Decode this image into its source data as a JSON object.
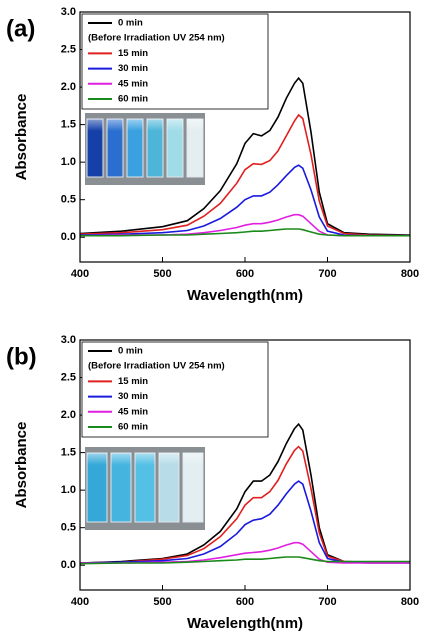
{
  "chart_data": [
    {
      "type": "line",
      "label": "(a)",
      "x_label": "Wavelength(nm)",
      "y_label": "Absorbance",
      "legend_note": "(Before Irradiation UV 254 nm)",
      "xlim": [
        400,
        800
      ],
      "xticks": [
        400,
        500,
        600,
        700,
        800
      ],
      "ylim": [
        -0.33,
        3
      ],
      "yticks": [
        {
          "value": 0,
          "label": "0.0"
        },
        0.5,
        {
          "value": 1,
          "label": "1.0"
        },
        1.5,
        {
          "value": 2,
          "label": "2.0"
        },
        2.5,
        {
          "value": 3,
          "label": "3.0"
        }
      ],
      "x": [
        400,
        450,
        500,
        530,
        550,
        570,
        590,
        600,
        610,
        620,
        630,
        640,
        650,
        660,
        665,
        670,
        680,
        690,
        700,
        720,
        750,
        800
      ],
      "series": [
        {
          "name": "0 min",
          "color": "#000000",
          "values": [
            0.05,
            0.08,
            0.14,
            0.22,
            0.38,
            0.62,
            0.98,
            1.25,
            1.38,
            1.35,
            1.42,
            1.6,
            1.85,
            2.05,
            2.12,
            2.05,
            1.4,
            0.6,
            0.18,
            0.06,
            0.04,
            0.03
          ]
        },
        {
          "name": "15 min",
          "color": "#e02020",
          "values": [
            0.04,
            0.06,
            0.1,
            0.16,
            0.28,
            0.45,
            0.72,
            0.9,
            0.98,
            0.97,
            1.02,
            1.15,
            1.35,
            1.55,
            1.63,
            1.58,
            1.1,
            0.48,
            0.15,
            0.05,
            0.03,
            0.02
          ]
        },
        {
          "name": "30 min",
          "color": "#1a1adf",
          "values": [
            0.03,
            0.04,
            0.06,
            0.09,
            0.15,
            0.25,
            0.4,
            0.5,
            0.55,
            0.55,
            0.6,
            0.7,
            0.82,
            0.93,
            0.96,
            0.92,
            0.63,
            0.27,
            0.08,
            0.03,
            0.02,
            0.02
          ]
        },
        {
          "name": "45 min",
          "color": "#e020e0",
          "values": [
            0.02,
            0.03,
            0.03,
            0.04,
            0.06,
            0.09,
            0.13,
            0.16,
            0.18,
            0.18,
            0.2,
            0.23,
            0.27,
            0.3,
            0.3,
            0.28,
            0.18,
            0.08,
            0.03,
            0.02,
            0.02,
            0.02
          ]
        },
        {
          "name": "60 min",
          "color": "#1a8a1a",
          "values": [
            0.02,
            0.02,
            0.03,
            0.03,
            0.04,
            0.05,
            0.06,
            0.07,
            0.08,
            0.08,
            0.09,
            0.1,
            0.11,
            0.11,
            0.11,
            0.1,
            0.07,
            0.04,
            0.03,
            0.02,
            0.02,
            0.02
          ]
        }
      ]
    },
    {
      "type": "line",
      "label": "(b)",
      "x_label": "Wavelength(nm)",
      "y_label": "Absorbance",
      "legend_note": "(Before Irradiation UV 254 nm)",
      "xlim": [
        400,
        800
      ],
      "xticks": [
        400,
        500,
        600,
        700,
        800
      ],
      "ylim": [
        -0.33,
        3
      ],
      "yticks": [
        {
          "value": 0,
          "label": "0.0"
        },
        0.5,
        {
          "value": 1,
          "label": "1.0"
        },
        1.5,
        {
          "value": 2,
          "label": "2.0"
        },
        2.5,
        {
          "value": 3,
          "label": "3.0"
        }
      ],
      "x": [
        400,
        450,
        500,
        530,
        550,
        570,
        590,
        600,
        610,
        620,
        630,
        640,
        650,
        660,
        665,
        670,
        680,
        690,
        700,
        720,
        750,
        800
      ],
      "series": [
        {
          "name": "0 min",
          "color": "#000000",
          "values": [
            0.03,
            0.05,
            0.09,
            0.15,
            0.27,
            0.45,
            0.75,
            0.98,
            1.12,
            1.12,
            1.2,
            1.38,
            1.62,
            1.82,
            1.88,
            1.8,
            1.2,
            0.5,
            0.14,
            0.05,
            0.04,
            0.04
          ]
        },
        {
          "name": "15 min",
          "color": "#e02020",
          "values": [
            0.03,
            0.04,
            0.08,
            0.13,
            0.22,
            0.38,
            0.62,
            0.8,
            0.9,
            0.9,
            0.98,
            1.13,
            1.35,
            1.53,
            1.58,
            1.52,
            1.02,
            0.43,
            0.12,
            0.05,
            0.04,
            0.04
          ]
        },
        {
          "name": "30 min",
          "color": "#1a1adf",
          "values": [
            0.03,
            0.04,
            0.06,
            0.09,
            0.15,
            0.25,
            0.42,
            0.54,
            0.6,
            0.62,
            0.68,
            0.8,
            0.95,
            1.08,
            1.12,
            1.08,
            0.72,
            0.3,
            0.09,
            0.04,
            0.03,
            0.03
          ]
        },
        {
          "name": "45 min",
          "color": "#e020e0",
          "values": [
            0.03,
            0.03,
            0.04,
            0.05,
            0.07,
            0.1,
            0.14,
            0.16,
            0.17,
            0.18,
            0.2,
            0.23,
            0.27,
            0.3,
            0.3,
            0.28,
            0.18,
            0.08,
            0.04,
            0.03,
            0.03,
            0.03
          ]
        },
        {
          "name": "60 min",
          "color": "#1a8a1a",
          "values": [
            0.02,
            0.03,
            0.03,
            0.04,
            0.05,
            0.06,
            0.07,
            0.08,
            0.08,
            0.08,
            0.09,
            0.1,
            0.11,
            0.11,
            0.11,
            0.1,
            0.08,
            0.06,
            0.05,
            0.05,
            0.05,
            0.05
          ]
        }
      ]
    }
  ]
}
